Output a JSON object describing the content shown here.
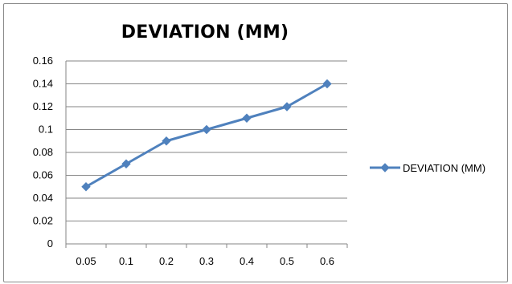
{
  "chart_data": {
    "type": "line",
    "title": "DEVIATION (MM)",
    "xlabel": "",
    "ylabel": "",
    "categories": [
      "0.05",
      "0.1",
      "0.2",
      "0.3",
      "0.4",
      "0.5",
      "0.6"
    ],
    "series": [
      {
        "name": "DEVIATION (MM)",
        "values": [
          0.05,
          0.07,
          0.09,
          0.1,
          0.11,
          0.12,
          0.14
        ],
        "color": "#4f81bd",
        "marker": "diamond"
      }
    ],
    "ylim": [
      0,
      0.16
    ],
    "yticks": [
      "0",
      "0.02",
      "0.04",
      "0.06",
      "0.08",
      "0.1",
      "0.12",
      "0.14",
      "0.16"
    ],
    "grid": "horizontal",
    "legend_position": "right"
  }
}
